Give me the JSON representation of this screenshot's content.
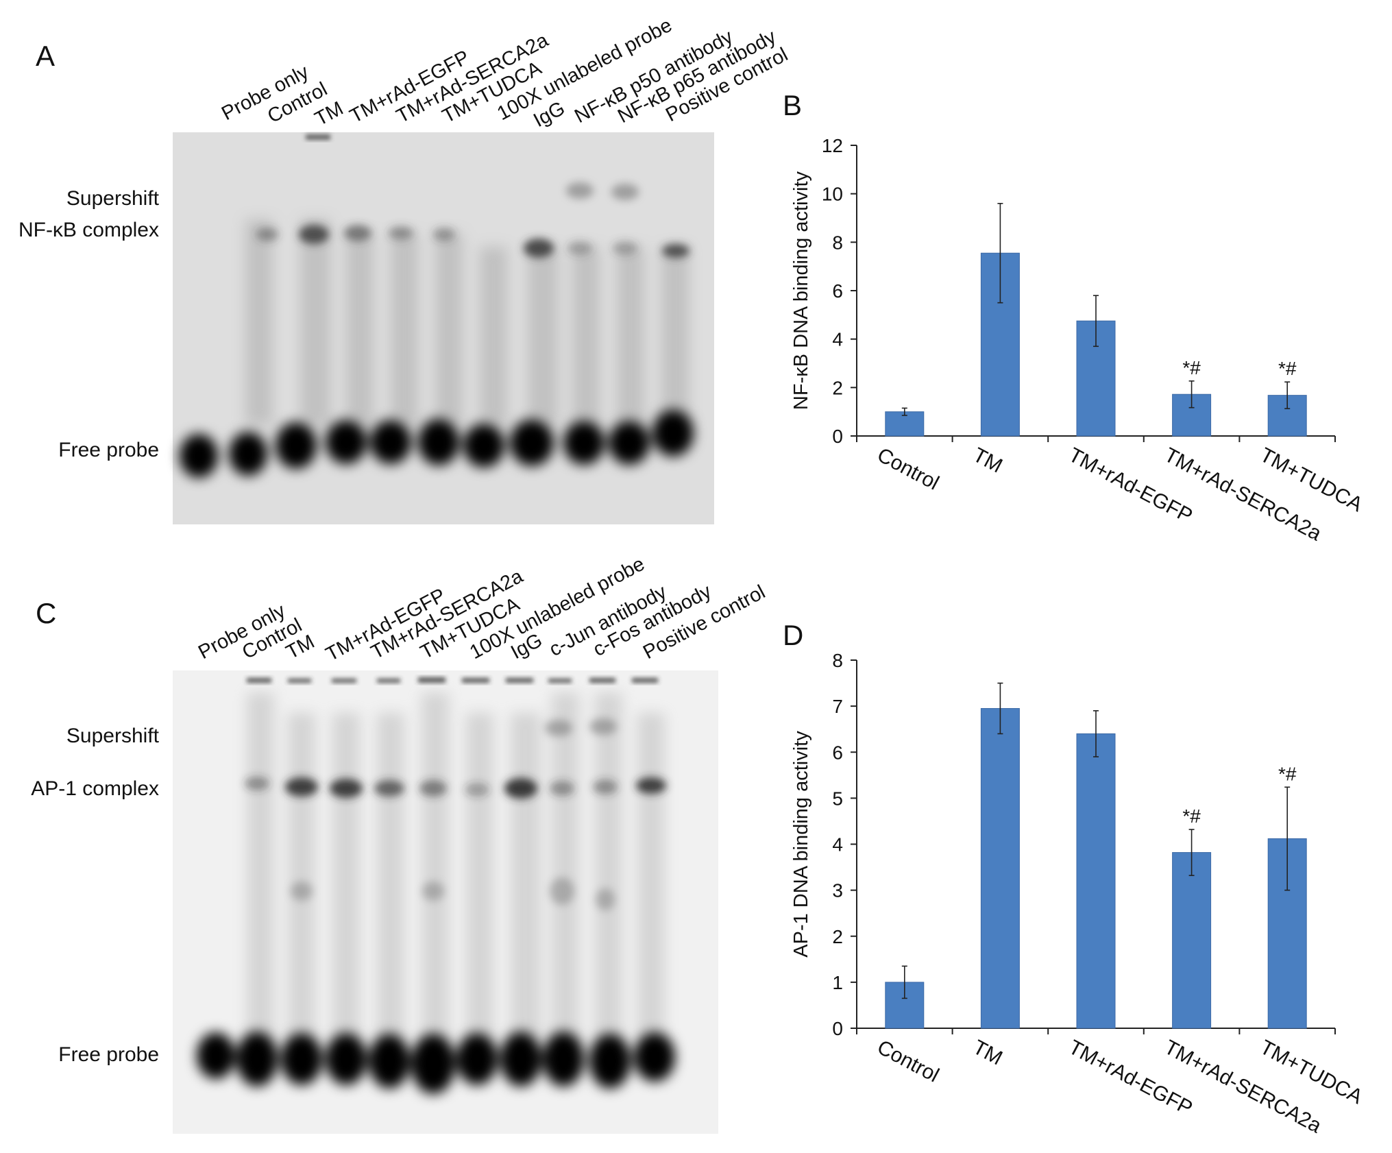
{
  "panels": {
    "a": {
      "letter": "A",
      "lanes": [
        "Probe only",
        "Control",
        "TM",
        "TM+rAd-EGFP",
        "TM+rAd-SERCA2a",
        "TM+TUDCA",
        "100X unlabeled probe",
        "IgG",
        "NF-κB p50 antibody",
        "NF-κB p65 antibody",
        "Positive control"
      ],
      "bands": [
        "Supershift",
        "NF-κB complex",
        "Free probe"
      ]
    },
    "b": {
      "letter": "B"
    },
    "c": {
      "letter": "C",
      "lanes": [
        "Probe only",
        "Control",
        "TM",
        "TM+rAd-EGFP",
        "TM+rAd-SERCA2a",
        "TM+TUDCA",
        "100X unlabeled probe",
        "IgG",
        "c-Jun antibody",
        "c-Fos antibody",
        "Positive control"
      ],
      "bands": [
        "Supershift",
        "AP-1 complex",
        "Free probe"
      ]
    },
    "d": {
      "letter": "D"
    }
  },
  "colors": {
    "bar": "#4a7fc1",
    "bar_edge": "#3d6aa6",
    "axis": "#222222"
  },
  "chart_data": [
    {
      "type": "bar",
      "panel": "B",
      "categories": [
        "Control",
        "TM",
        "TM+rAd-EGFP",
        "TM+rAd-SERCA2a",
        "TM+TUDCA"
      ],
      "values": [
        1.0,
        7.55,
        4.75,
        1.72,
        1.68
      ],
      "errors": [
        0.15,
        2.05,
        1.05,
        0.55,
        0.55
      ],
      "annotations": [
        "",
        "",
        "",
        "*#",
        "*#"
      ],
      "ylabel": "NF-κB DNA binding activity",
      "ylim": [
        0,
        12
      ],
      "yticks": [
        0,
        2,
        4,
        6,
        8,
        10,
        12
      ],
      "grid": false
    },
    {
      "type": "bar",
      "panel": "D",
      "categories": [
        "Control",
        "TM",
        "TM+rAd-EGFP",
        "TM+rAd-SERCA2a",
        "TM+TUDCA"
      ],
      "values": [
        1.0,
        6.95,
        6.4,
        3.82,
        4.12
      ],
      "errors": [
        0.35,
        0.55,
        0.5,
        0.5,
        1.12
      ],
      "annotations": [
        "",
        "",
        "",
        "*#",
        "*#"
      ],
      "ylabel": "AP-1 DNA binding activity",
      "ylim": [
        0,
        8
      ],
      "yticks": [
        0,
        1,
        2,
        3,
        4,
        5,
        6,
        7,
        8
      ],
      "grid": false
    }
  ]
}
